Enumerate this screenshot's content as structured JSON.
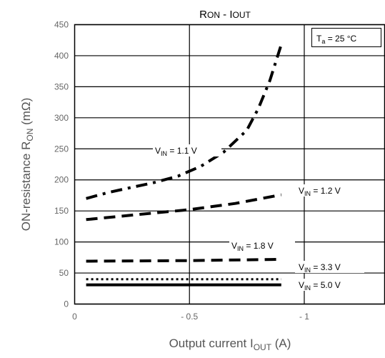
{
  "chart_data": {
    "type": "line",
    "title": "RON - IOUT",
    "xlabel": "Output current  IOUT  (A)",
    "ylabel": "ON-resistance  RON  (mΩ)",
    "xlim": [
      0,
      -1.35
    ],
    "ylim": [
      0,
      450
    ],
    "x_ticks": [
      "0",
      "- 0.5",
      "- 1"
    ],
    "y_ticks": [
      "0",
      "50",
      "100",
      "150",
      "200",
      "250",
      "300",
      "350",
      "400",
      "450"
    ],
    "grid": true,
    "annotation": "Ta = 25 °C",
    "series": [
      {
        "name": "VIN = 1.1 V",
        "style": "dashdot",
        "x": [
          -0.05,
          -0.15,
          -0.25,
          -0.35,
          -0.45,
          -0.55,
          -0.65,
          -0.75,
          -0.8,
          -0.85,
          -0.9
        ],
        "y": [
          170,
          180,
          188,
          196,
          206,
          222,
          245,
          280,
          315,
          360,
          418
        ]
      },
      {
        "name": "VIN = 1.2 V",
        "style": "dashed",
        "x": [
          -0.05,
          -0.3,
          -0.5,
          -0.7,
          -0.9
        ],
        "y": [
          136,
          145,
          152,
          162,
          176
        ]
      },
      {
        "name": "VIN = 1.8 V",
        "style": "dashed",
        "x": [
          -0.05,
          -0.5,
          -0.9
        ],
        "y": [
          69,
          70,
          72
        ]
      },
      {
        "name": "VIN = 3.3 V",
        "style": "dotted",
        "x": [
          -0.05,
          -0.5,
          -0.9
        ],
        "y": [
          40,
          40,
          40
        ]
      },
      {
        "name": "VIN = 5.0 V",
        "style": "solid",
        "x": [
          -0.05,
          -0.5,
          -0.9
        ],
        "y": [
          31,
          31,
          31
        ]
      }
    ]
  },
  "labels": {
    "title_main": "RON - IOUT",
    "ta": "Ta = 25 °C",
    "xlabel": "Output current  IOUT  (A)",
    "ylabel": "ON-resistance  RON  (mΩ)",
    "v11": "VIN = 1.1 V",
    "v12": "VIN = 1.2 V",
    "v18": "VIN = 1.8 V",
    "v33": "VIN = 3.3 V",
    "v50": "VIN = 5.0 V"
  }
}
